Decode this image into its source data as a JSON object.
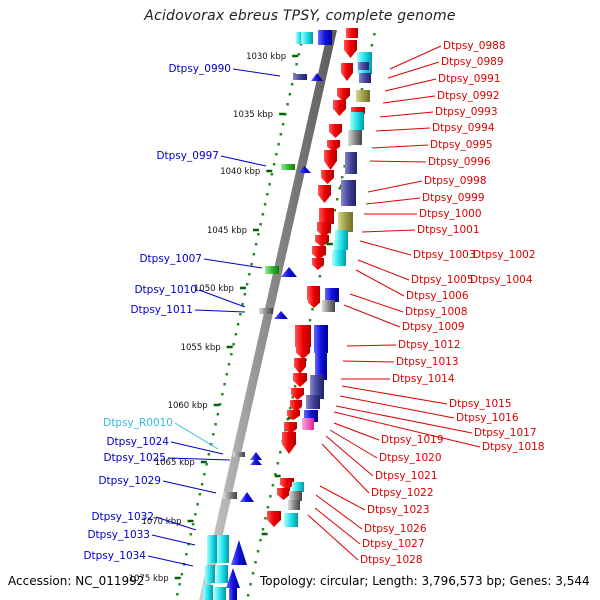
{
  "title": "Acidovorax ebreus TPSY, complete genome",
  "accession": "Accession: NC_011992",
  "topology": "Topology: circular; Length: 3,796,573 bp; Genes: 3,544",
  "colors": {
    "plus_strand_label": "#0000cc",
    "minus_strand_label": "#dd0000",
    "rna_label": "#33bbdd",
    "ruler_dots": "#228b22",
    "ruler_ticks": "#006400",
    "backbone": "#8c8c8c"
  },
  "ruler_labels": [
    "1030 kbp",
    "1035 kbp",
    "1040 kbp",
    "1045 kbp",
    "1050 kbp",
    "1055 kbp",
    "1060 kbp",
    "1065 kbp",
    "1070 kbp",
    "1075 kbp"
  ],
  "left_labels": [
    {
      "name": "Dtpsy_0990",
      "type": "cds"
    },
    {
      "name": "Dtpsy_0997",
      "type": "cds"
    },
    {
      "name": "Dtpsy_1007",
      "type": "cds"
    },
    {
      "name": "Dtpsy_1010",
      "type": "cds"
    },
    {
      "name": "Dtpsy_1011",
      "type": "cds"
    },
    {
      "name": "Dtpsy_R0010",
      "type": "rna"
    },
    {
      "name": "Dtpsy_1024",
      "type": "cds"
    },
    {
      "name": "Dtpsy_1025",
      "type": "cds"
    },
    {
      "name": "Dtpsy_1029",
      "type": "cds"
    },
    {
      "name": "Dtpsy_1032",
      "type": "cds"
    },
    {
      "name": "Dtpsy_1033",
      "type": "cds"
    },
    {
      "name": "Dtpsy_1034",
      "type": "cds"
    }
  ],
  "right_labels": [
    "Dtpsy_0988",
    "Dtpsy_0989",
    "Dtpsy_0991",
    "Dtpsy_0992",
    "Dtpsy_0993",
    "Dtpsy_0994",
    "Dtpsy_0995",
    "Dtpsy_0996",
    "Dtpsy_0998",
    "Dtpsy_0999",
    "Dtpsy_1000",
    "Dtpsy_1001",
    "Dtpsy_1003",
    "Dtpsy_1002",
    "Dtpsy_1005",
    "Dtpsy_1004",
    "Dtpsy_1006",
    "Dtpsy_1008",
    "Dtpsy_1009",
    "Dtpsy_1012",
    "Dtpsy_1013",
    "Dtpsy_1014",
    "Dtpsy_1015",
    "Dtpsy_1016",
    "Dtpsy_1017",
    "Dtpsy_1018",
    "Dtpsy_1019",
    "Dtpsy_1020",
    "Dtpsy_1021",
    "Dtpsy_1022",
    "Dtpsy_1023",
    "Dtpsy_1026",
    "Dtpsy_1027",
    "Dtpsy_1028"
  ]
}
